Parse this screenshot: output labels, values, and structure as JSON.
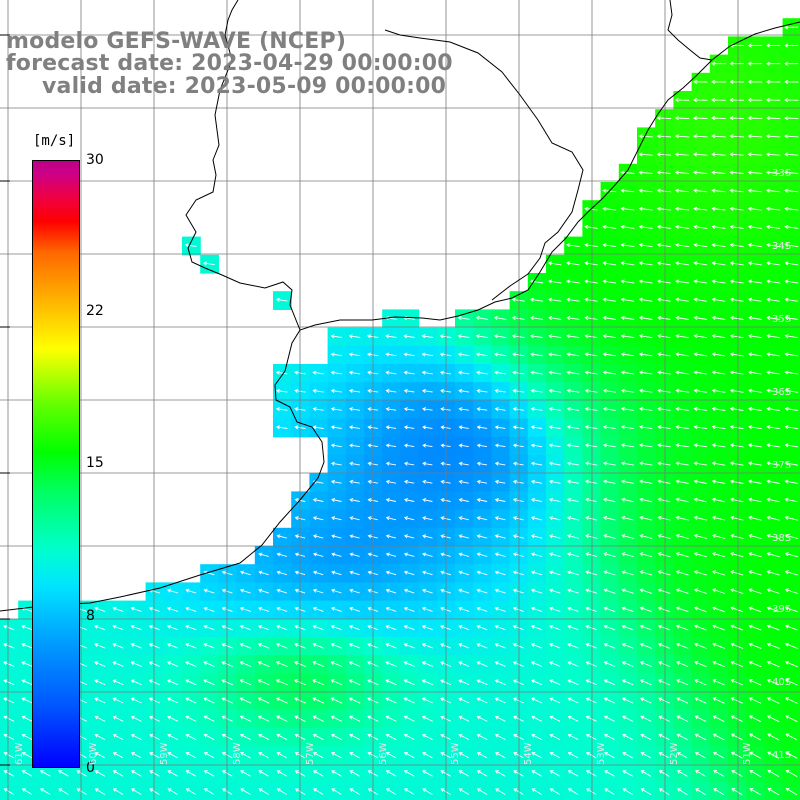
{
  "titles": {
    "model": "modelo GEFS-WAVE (NCEP)",
    "forecast": "forecast date: 2023-04-29 00:00:00",
    "valid": "valid date: 2023-05-09 00:00:00"
  },
  "colorbar": {
    "unit": "[m/s]",
    "labels": [
      "30",
      "22",
      "15",
      "8",
      "0"
    ],
    "min": 0,
    "max": 30
  },
  "lat_labels": [
    "33S",
    "34S",
    "35S",
    "36S",
    "37S",
    "38S",
    "39S",
    "40S",
    "41S"
  ],
  "lon_labels": [
    "61W",
    "60W",
    "59W",
    "58W",
    "57W",
    "56W",
    "55W",
    "54W",
    "53W",
    "52W",
    "51W"
  ],
  "colors": {
    "land": "#ffffff",
    "grid": "#7a7a7a",
    "coast": "#000000",
    "arrows": "#ffffff",
    "title_text": "#808080"
  }
}
